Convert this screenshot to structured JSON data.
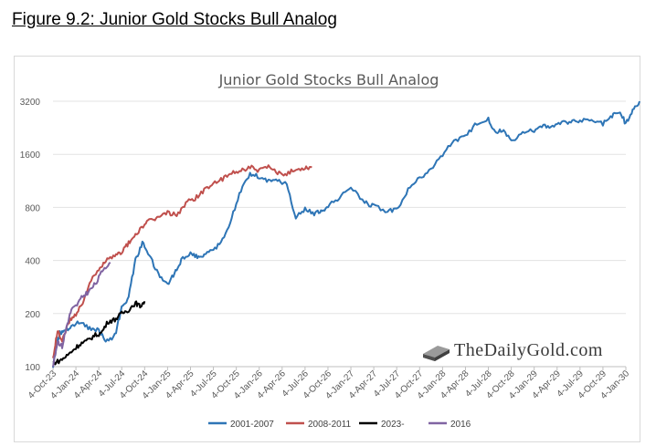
{
  "figure_title": "Figure 9.2: Junior Gold Stocks Bull Analog",
  "watermark": {
    "text": "TheDailyGold.com",
    "icon": "gold-bar-icon"
  },
  "chart_data": {
    "type": "line",
    "title": "Junior Gold Stocks Bull Analog",
    "xlabel": "",
    "ylabel": "",
    "y_scale": "log",
    "ylim": [
      100,
      3600
    ],
    "y_ticks": [
      100,
      200,
      400,
      800,
      1600,
      3200
    ],
    "x_ticks": [
      "4-Oct-23",
      "4-Jan-24",
      "4-Apr-24",
      "4-Jul-24",
      "4-Oct-24",
      "4-Jan-25",
      "4-Apr-25",
      "4-Jul-25",
      "4-Oct-25",
      "4-Jan-26",
      "4-Apr-26",
      "4-Jul-26",
      "4-Oct-26",
      "4-Jan-27",
      "4-Apr-27",
      "4-Jul-27",
      "4-Oct-27",
      "4-Jan-28",
      "4-Apr-28",
      "4-Jul-28",
      "4-Oct-28",
      "4-Jan-29",
      "4-Apr-29",
      "4-Jul-29",
      "4-Oct-29",
      "4-Jan-30"
    ],
    "legend_position": "bottom",
    "grid": true,
    "series": [
      {
        "name": "2001-2007",
        "color": "#2e75b6",
        "x": [
          0,
          0.15,
          0.3,
          0.5,
          0.8,
          1.2,
          1.6,
          2.0,
          2.3,
          2.7,
          3.0,
          3.3,
          3.6,
          3.9,
          4.2,
          4.6,
          5.0,
          5.3,
          5.6,
          6.0,
          6.3,
          6.6,
          7.0,
          7.4,
          7.8,
          8.2,
          8.6,
          9.0,
          9.4,
          9.8,
          10.2,
          10.6,
          11.0,
          11.4,
          11.7,
          12.0,
          12.5,
          13.0,
          13.6,
          14.0,
          14.6,
          15.0,
          15.5,
          16.0,
          16.5,
          17.0,
          17.5,
          18.0,
          18.5,
          19.0,
          19.3,
          19.6,
          20.0,
          20.5,
          21.0,
          21.4,
          21.8,
          22.2,
          22.6,
          23.0,
          23.5,
          24.0,
          24.4,
          24.7,
          25.0,
          25.3,
          25.6
        ],
        "values": [
          100,
          130,
          155,
          160,
          170,
          180,
          165,
          160,
          140,
          150,
          215,
          250,
          400,
          500,
          430,
          330,
          290,
          340,
          400,
          440,
          420,
          430,
          460,
          520,
          700,
          1000,
          1250,
          1200,
          1130,
          1150,
          1080,
          700,
          790,
          740,
          760,
          820,
          900,
          1060,
          850,
          820,
          760,
          780,
          1000,
          1180,
          1300,
          1600,
          1900,
          2000,
          2400,
          2550,
          2100,
          2200,
          1900,
          2100,
          2200,
          2350,
          2300,
          2400,
          2450,
          2500,
          2500,
          2400,
          2650,
          2800,
          2400,
          2850,
          3200
        ]
      },
      {
        "name": "2008-2011",
        "color": "#c0504d",
        "x": [
          0,
          0.2,
          0.4,
          0.7,
          1.0,
          1.3,
          1.6,
          2.0,
          2.3,
          2.7,
          3.0,
          3.3,
          3.6,
          4.0,
          4.3,
          4.6,
          5.0,
          5.4,
          5.8,
          6.2,
          6.6,
          7.0,
          7.4,
          7.8,
          8.2,
          8.6,
          9.0,
          9.4,
          9.8,
          10.2,
          10.6,
          11.0,
          11.3
        ],
        "values": [
          110,
          160,
          140,
          180,
          200,
          230,
          300,
          350,
          400,
          420,
          450,
          500,
          560,
          640,
          680,
          700,
          750,
          720,
          850,
          900,
          1000,
          1100,
          1150,
          1250,
          1300,
          1350,
          1300,
          1350,
          1250,
          1250,
          1300,
          1350,
          1350
        ]
      },
      {
        "name": "2023-",
        "color": "#000000",
        "x": [
          0,
          0.3,
          0.6,
          0.9,
          1.2,
          1.5,
          1.8,
          2.1,
          2.4,
          2.7,
          3.0,
          3.3,
          3.6,
          3.8,
          4.0
        ],
        "values": [
          105,
          108,
          115,
          125,
          135,
          140,
          150,
          155,
          180,
          185,
          200,
          210,
          230,
          220,
          235
        ]
      },
      {
        "name": "2016",
        "color": "#8064a2",
        "x": [
          0,
          0.2,
          0.4,
          0.6,
          0.8,
          1.0,
          1.3,
          1.6,
          1.9,
          2.2,
          2.5
        ],
        "values": [
          100,
          140,
          130,
          170,
          210,
          220,
          250,
          270,
          300,
          360,
          390
        ]
      }
    ]
  }
}
